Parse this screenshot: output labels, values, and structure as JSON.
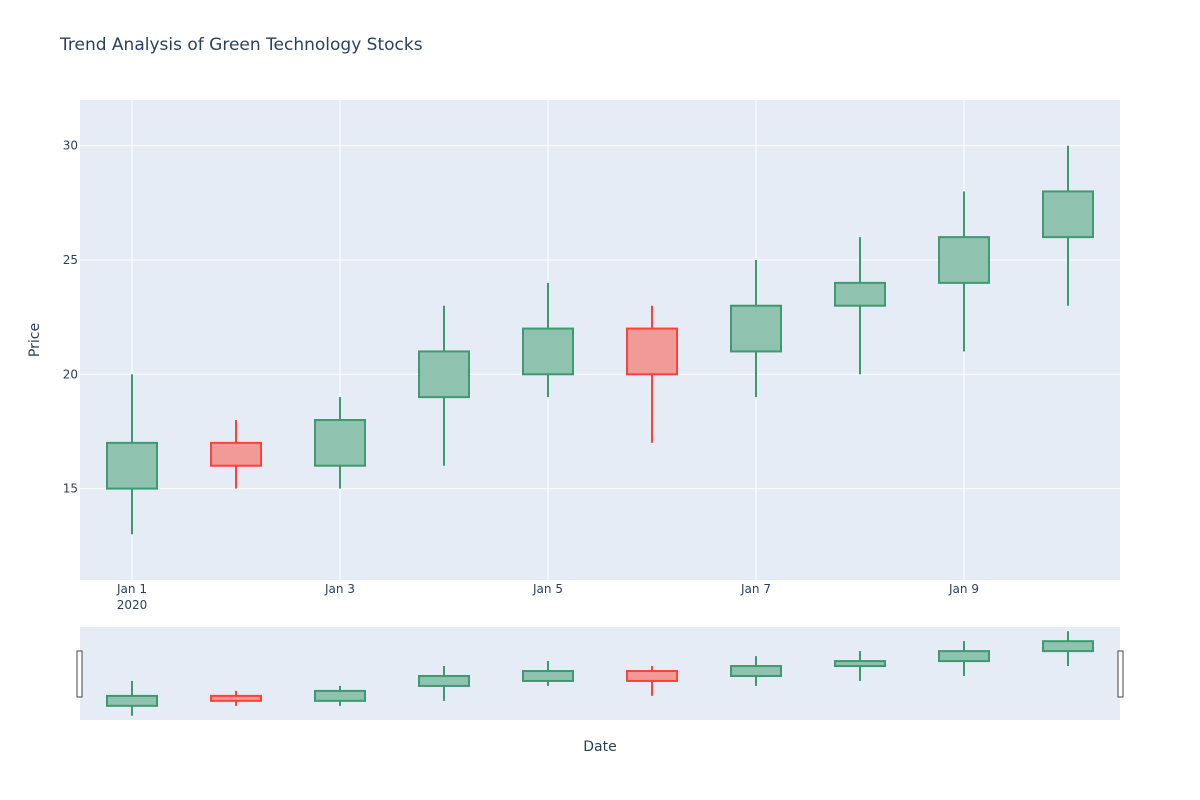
{
  "chart_data": {
    "type": "candlestick",
    "title": "Trend Analysis of Green Technology Stocks",
    "xlabel": "Date",
    "ylabel": "Price",
    "x_year_label": "2020",
    "x_tick_labels": [
      "Jan 1",
      "Jan 3",
      "Jan 5",
      "Jan 7",
      "Jan 9"
    ],
    "y_tick_labels": [
      "15",
      "20",
      "25",
      "30"
    ],
    "ylim": [
      11,
      32
    ],
    "grid": true,
    "rangeslider": true,
    "series": [
      {
        "dates": [
          "2020-01-01",
          "2020-01-02",
          "2020-01-03",
          "2020-01-04",
          "2020-01-05",
          "2020-01-06",
          "2020-01-07",
          "2020-01-08",
          "2020-01-09",
          "2020-01-10"
        ],
        "open": [
          15,
          17,
          16,
          19,
          20,
          22,
          21,
          23,
          24,
          26
        ],
        "high": [
          20,
          18,
          19,
          23,
          24,
          23,
          25,
          26,
          28,
          30
        ],
        "low": [
          13,
          15,
          15,
          16,
          19,
          17,
          19,
          20,
          21,
          23
        ],
        "close": [
          17,
          16,
          18,
          21,
          22,
          20,
          23,
          24,
          26,
          28
        ]
      }
    ],
    "colors": {
      "increasing_line": "#3d9970",
      "increasing_fill": "#8fc3af",
      "decreasing_line": "#ff4136",
      "decreasing_fill": "#f29a98",
      "plot_bg": "#e5ecf6",
      "grid": "#ffffff",
      "text": "#2a3f5f"
    }
  }
}
